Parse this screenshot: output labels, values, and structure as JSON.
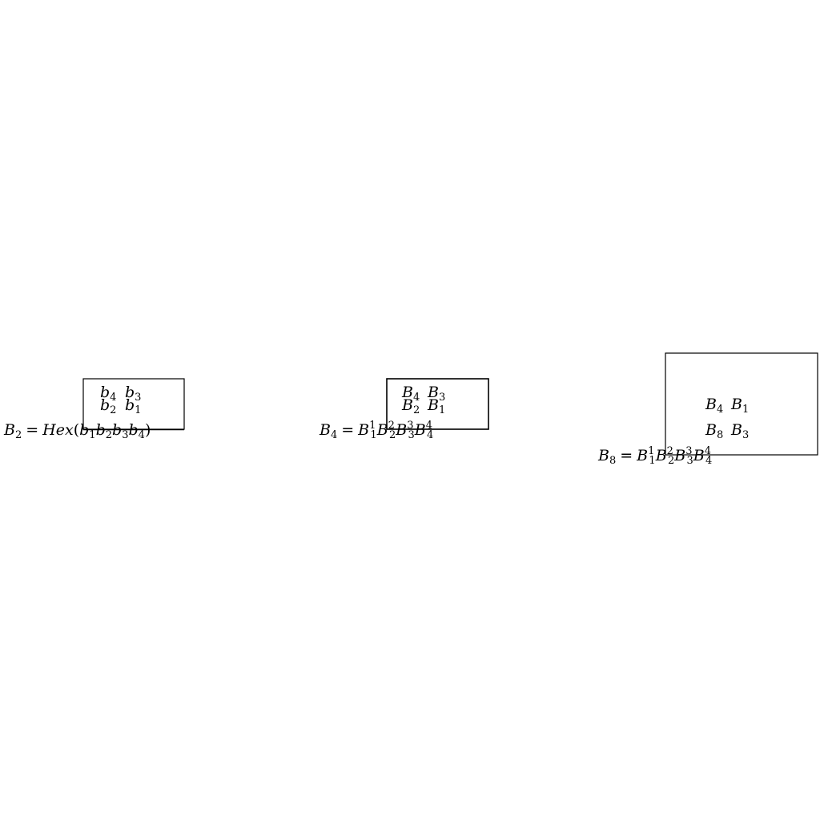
{
  "panels": [
    {
      "id": "b2",
      "cells": {
        "top_left": {
          "var": "b",
          "idx": "4"
        },
        "top_right": {
          "var": "b",
          "idx": "3"
        },
        "bot_left": {
          "var": "b",
          "idx": "2"
        },
        "bot_right": {
          "var": "b",
          "idx": "1"
        }
      },
      "formula": {
        "lhs_var": "B",
        "lhs_idx": "2",
        "eq": "=",
        "func": "Hex",
        "open": "(",
        "args": [
          {
            "var": "b",
            "idx": "1"
          },
          {
            "var": "b",
            "idx": "2"
          },
          {
            "var": "b",
            "idx": "3"
          },
          {
            "var": "b",
            "idx": "4"
          }
        ],
        "close": ")"
      }
    },
    {
      "id": "b4",
      "cells": {
        "top_left": {
          "var": "B",
          "idx": "4"
        },
        "top_right": {
          "var": "B",
          "idx": "3"
        },
        "bot_left": {
          "var": "B",
          "idx": "2"
        },
        "bot_right": {
          "var": "B",
          "idx": "1"
        }
      },
      "formula": {
        "lhs_var": "B",
        "lhs_idx": "4",
        "eq": "=",
        "terms": [
          {
            "var": "B",
            "idx": "1",
            "sup": "1"
          },
          {
            "var": "B",
            "idx": "2",
            "sup": "2"
          },
          {
            "var": "B",
            "idx": "3",
            "sup": "3"
          },
          {
            "var": "B",
            "idx": "4",
            "sup": "4"
          }
        ]
      }
    },
    {
      "id": "b8",
      "cells": {
        "top_left": {
          "var": "B",
          "idx": "4"
        },
        "top_right": {
          "var": "B",
          "idx": "1"
        },
        "bot_left": {
          "var": "B",
          "idx": "8"
        },
        "bot_right": {
          "var": "B",
          "idx": "3"
        }
      },
      "formula": {
        "lhs_var": "B",
        "lhs_idx": "8",
        "eq": "=",
        "terms": [
          {
            "var": "B",
            "idx": "1",
            "sup": "1"
          },
          {
            "var": "B",
            "idx": "2",
            "sup": "2"
          },
          {
            "var": "B",
            "idx": "3",
            "sup": "3"
          },
          {
            "var": "B",
            "idx": "4",
            "sup": "4"
          }
        ]
      }
    }
  ]
}
